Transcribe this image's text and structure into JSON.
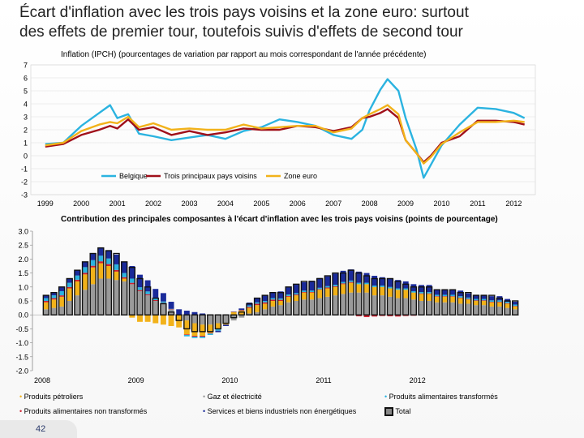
{
  "slide": {
    "title_line1": "Écart d'inflation avec les trois pays voisins et la zone euro: surtout",
    "title_line2": "des effets de premier tour, toutefois suivis d'effets de second tour",
    "page_number": "42"
  },
  "chart_data": [
    {
      "type": "line",
      "title": "Inflation (IPCH) (pourcentages de variation par rapport au mois correspondant de l'année précédente)",
      "xlabel": "",
      "ylabel": "",
      "ylim": [
        -3,
        7
      ],
      "yticks": [
        "7",
        "6",
        "5",
        "4",
        "3",
        "2",
        "1",
        "0",
        "-1",
        "-2",
        "-3"
      ],
      "xticks": [
        "1999",
        "2000",
        "2001",
        "2002",
        "2003",
        "2004",
        "2005",
        "2006",
        "2007",
        "2008",
        "2009",
        "2010",
        "2011",
        "2012"
      ],
      "x": [
        1999.0,
        1999.5,
        2000.0,
        2000.5,
        2000.8,
        2001.0,
        2001.3,
        2001.6,
        2002.0,
        2002.5,
        2003.0,
        2003.5,
        2004.0,
        2004.5,
        2005.0,
        2005.5,
        2006.0,
        2006.5,
        2007.0,
        2007.5,
        2007.8,
        2008.0,
        2008.3,
        2008.5,
        2008.8,
        2009.0,
        2009.3,
        2009.5,
        2009.7,
        2010.0,
        2010.5,
        2011.0,
        2011.5,
        2012.0,
        2012.3
      ],
      "series": [
        {
          "name": "Belgique",
          "color": "#2bb3e0",
          "values": [
            0.9,
            1.0,
            2.3,
            3.3,
            3.9,
            2.9,
            3.2,
            1.7,
            1.5,
            1.2,
            1.4,
            1.6,
            1.3,
            1.9,
            2.2,
            2.8,
            2.6,
            2.3,
            1.6,
            1.3,
            2.0,
            3.5,
            5.1,
            5.9,
            5.0,
            2.9,
            0.5,
            -1.7,
            -0.7,
            0.8,
            2.4,
            3.7,
            3.6,
            3.3,
            2.9
          ]
        },
        {
          "name": "Trois principaux pays voisins",
          "color": "#a0101a",
          "values": [
            0.7,
            0.9,
            1.6,
            2.0,
            2.3,
            2.1,
            2.8,
            2.0,
            2.2,
            1.6,
            1.9,
            1.6,
            1.8,
            2.1,
            2.0,
            2.0,
            2.3,
            2.2,
            1.9,
            2.2,
            2.9,
            3.0,
            3.3,
            3.6,
            2.9,
            1.2,
            0.2,
            -0.5,
            0.0,
            1.0,
            1.5,
            2.7,
            2.7,
            2.6,
            2.4
          ]
        },
        {
          "name": "Zone euro",
          "color": "#f2b21a",
          "values": [
            0.8,
            1.0,
            1.9,
            2.4,
            2.6,
            2.5,
            3.0,
            2.2,
            2.5,
            2.0,
            2.1,
            2.0,
            2.0,
            2.4,
            2.1,
            2.2,
            2.3,
            2.3,
            1.8,
            2.1,
            2.9,
            3.2,
            3.6,
            3.9,
            3.2,
            1.2,
            0.2,
            -0.6,
            -0.1,
            0.9,
            1.8,
            2.6,
            2.6,
            2.7,
            2.6
          ]
        }
      ]
    },
    {
      "type": "bar",
      "title": "Contribution des principales composantes à l'écart d'inflation avec les trois pays voisins (points de pourcentage)",
      "ylim": [
        -2.0,
        3.0
      ],
      "yticks": [
        "3.0",
        "2.5",
        "2.0",
        "1.5",
        "1.0",
        "0.5",
        "0.0",
        "-0.5",
        "-1.0",
        "-1.5",
        "-2.0"
      ],
      "xticks": [
        "2008",
        "2009",
        "2010",
        "2011",
        "2012"
      ],
      "categories": [
        "2008-01",
        "2008-02",
        "2008-03",
        "2008-04",
        "2008-05",
        "2008-06",
        "2008-07",
        "2008-08",
        "2008-09",
        "2008-10",
        "2008-11",
        "2008-12",
        "2009-01",
        "2009-02",
        "2009-03",
        "2009-04",
        "2009-05",
        "2009-06",
        "2009-07",
        "2009-08",
        "2009-09",
        "2009-10",
        "2009-11",
        "2009-12",
        "2010-01",
        "2010-02",
        "2010-03",
        "2010-04",
        "2010-05",
        "2010-06",
        "2010-07",
        "2010-08",
        "2010-09",
        "2010-10",
        "2010-11",
        "2010-12",
        "2011-01",
        "2011-02",
        "2011-03",
        "2011-04",
        "2011-05",
        "2011-06",
        "2011-07",
        "2011-08",
        "2011-09",
        "2011-10",
        "2011-11",
        "2011-12",
        "2012-01",
        "2012-02",
        "2012-03",
        "2012-04",
        "2012-05",
        "2012-06",
        "2012-07",
        "2012-08",
        "2012-09",
        "2012-10",
        "2012-11",
        "2012-12",
        "2013-01"
      ],
      "series": [
        {
          "name": "Produits pétroliers",
          "color": "#f2b21a",
          "values": [
            0.25,
            0.3,
            0.35,
            0.45,
            0.5,
            0.55,
            0.6,
            0.55,
            0.45,
            0.3,
            0.1,
            -0.1,
            -0.25,
            -0.25,
            -0.3,
            -0.35,
            -0.4,
            -0.45,
            -0.5,
            -0.45,
            -0.4,
            -0.3,
            -0.2,
            -0.05,
            0.1,
            0.15,
            0.2,
            0.25,
            0.2,
            0.2,
            0.15,
            0.2,
            0.2,
            0.25,
            0.25,
            0.3,
            0.3,
            0.3,
            0.35,
            0.35,
            0.3,
            0.3,
            0.3,
            0.3,
            0.3,
            0.3,
            0.3,
            0.25,
            0.25,
            0.25,
            0.2,
            0.2,
            0.2,
            0.2,
            0.15,
            0.15,
            0.15,
            0.15,
            0.15,
            0.15,
            0.1
          ]
        },
        {
          "name": "Gaz et électricité",
          "color": "#9a9a9a",
          "values": [
            0.2,
            0.25,
            0.3,
            0.5,
            0.7,
            0.9,
            1.1,
            1.3,
            1.3,
            1.25,
            1.2,
            1.1,
            0.85,
            0.7,
            0.5,
            0.4,
            0.2,
            0.0,
            -0.2,
            -0.3,
            -0.35,
            -0.35,
            -0.3,
            -0.3,
            -0.2,
            -0.1,
            0.05,
            0.1,
            0.2,
            0.3,
            0.35,
            0.45,
            0.5,
            0.55,
            0.55,
            0.6,
            0.65,
            0.7,
            0.75,
            0.8,
            0.8,
            0.8,
            0.7,
            0.7,
            0.65,
            0.6,
            0.6,
            0.55,
            0.5,
            0.5,
            0.45,
            0.45,
            0.45,
            0.4,
            0.4,
            0.35,
            0.35,
            0.3,
            0.3,
            0.25,
            0.2
          ]
        },
        {
          "name": "Produits alimentaires non transformés",
          "color": "#d02030",
          "values": [
            0.05,
            0.05,
            0.05,
            0.05,
            0.06,
            0.06,
            0.06,
            0.07,
            0.07,
            0.06,
            0.05,
            0.05,
            0.04,
            0.04,
            0.03,
            0.03,
            0.02,
            0.0,
            -0.02,
            -0.03,
            -0.03,
            -0.02,
            -0.02,
            0.0,
            0.02,
            0.03,
            0.04,
            0.05,
            0.05,
            0.05,
            0.04,
            0.03,
            0.03,
            0.02,
            0.02,
            0.02,
            0.03,
            0.03,
            0.03,
            0.03,
            -0.05,
            -0.08,
            -0.06,
            -0.04,
            -0.05,
            -0.06,
            -0.04,
            -0.03,
            0.02,
            0.02,
            0.02,
            0.02,
            0.02,
            0.02,
            0.02,
            0.02,
            0.02,
            0.02,
            0.02,
            0.02,
            0.02
          ]
        },
        {
          "name": "Services et biens industriels non énergétiques",
          "color": "#1a2a9a",
          "values": [
            0.1,
            0.1,
            0.15,
            0.15,
            0.2,
            0.2,
            0.25,
            0.3,
            0.3,
            0.35,
            0.4,
            0.45,
            0.45,
            0.4,
            0.35,
            0.3,
            0.25,
            0.2,
            0.15,
            0.1,
            0.05,
            0.0,
            -0.05,
            -0.05,
            0.0,
            0.05,
            0.1,
            0.15,
            0.2,
            0.2,
            0.25,
            0.25,
            0.3,
            0.3,
            0.35,
            0.35,
            0.35,
            0.4,
            0.4,
            0.4,
            0.4,
            0.35,
            0.35,
            0.3,
            0.3,
            0.3,
            0.25,
            0.25,
            0.25,
            0.25,
            0.2,
            0.2,
            0.2,
            0.2,
            0.15,
            0.15,
            0.15,
            0.15,
            0.15,
            0.1,
            0.1
          ]
        },
        {
          "name": "Produits alimentaires transformés",
          "color": "#2bb3e0",
          "values": [
            0.1,
            0.1,
            0.15,
            0.15,
            0.15,
            0.2,
            0.2,
            0.2,
            0.2,
            0.2,
            0.15,
            0.15,
            0.1,
            0.1,
            0.05,
            0.05,
            0.0,
            0.0,
            -0.05,
            -0.05,
            -0.05,
            -0.05,
            -0.05,
            0.0,
            0.0,
            0.0,
            0.05,
            0.05,
            0.05,
            0.05,
            0.05,
            0.05,
            0.05,
            0.05,
            0.05,
            0.05,
            0.05,
            0.05,
            0.05,
            0.05,
            0.05,
            0.05,
            0.05,
            0.05,
            0.05,
            0.05,
            0.05,
            0.05,
            0.05,
            0.05,
            0.05,
            0.05,
            0.05,
            0.05,
            0.05,
            0.05,
            0.05,
            0.05,
            0.05,
            0.05,
            0.05
          ]
        },
        {
          "name": "Total",
          "color": "#111111",
          "values": [
            0.7,
            0.8,
            1.0,
            1.3,
            1.6,
            1.9,
            2.2,
            2.4,
            2.3,
            2.2,
            1.9,
            1.7,
            1.3,
            1.0,
            0.6,
            0.4,
            0.1,
            -0.2,
            -0.5,
            -0.6,
            -0.6,
            -0.6,
            -0.5,
            -0.3,
            -0.1,
            0.1,
            0.4,
            0.6,
            0.7,
            0.8,
            0.8,
            1.0,
            1.1,
            1.2,
            1.2,
            1.3,
            1.4,
            1.5,
            1.5,
            1.6,
            1.5,
            1.4,
            1.3,
            1.3,
            1.3,
            1.2,
            1.1,
            1.0,
            1.0,
            1.0,
            0.9,
            0.9,
            0.9,
            0.8,
            0.8,
            0.7,
            0.7,
            0.7,
            0.6,
            0.5,
            0.5
          ]
        }
      ]
    }
  ],
  "legend1": {
    "belgique": "Belgique",
    "voisins": "Trois principaux pays voisins",
    "zone_euro": "Zone euro"
  },
  "legend2": {
    "petroliers": "Produits pétroliers",
    "gaz": "Gaz et électricité",
    "alim_transformes": "Produits alimentaires transformés",
    "alim_non_transformes": "Produits alimentaires non transformés",
    "services": "Services et biens industriels non énergétiques",
    "total": "Total"
  }
}
